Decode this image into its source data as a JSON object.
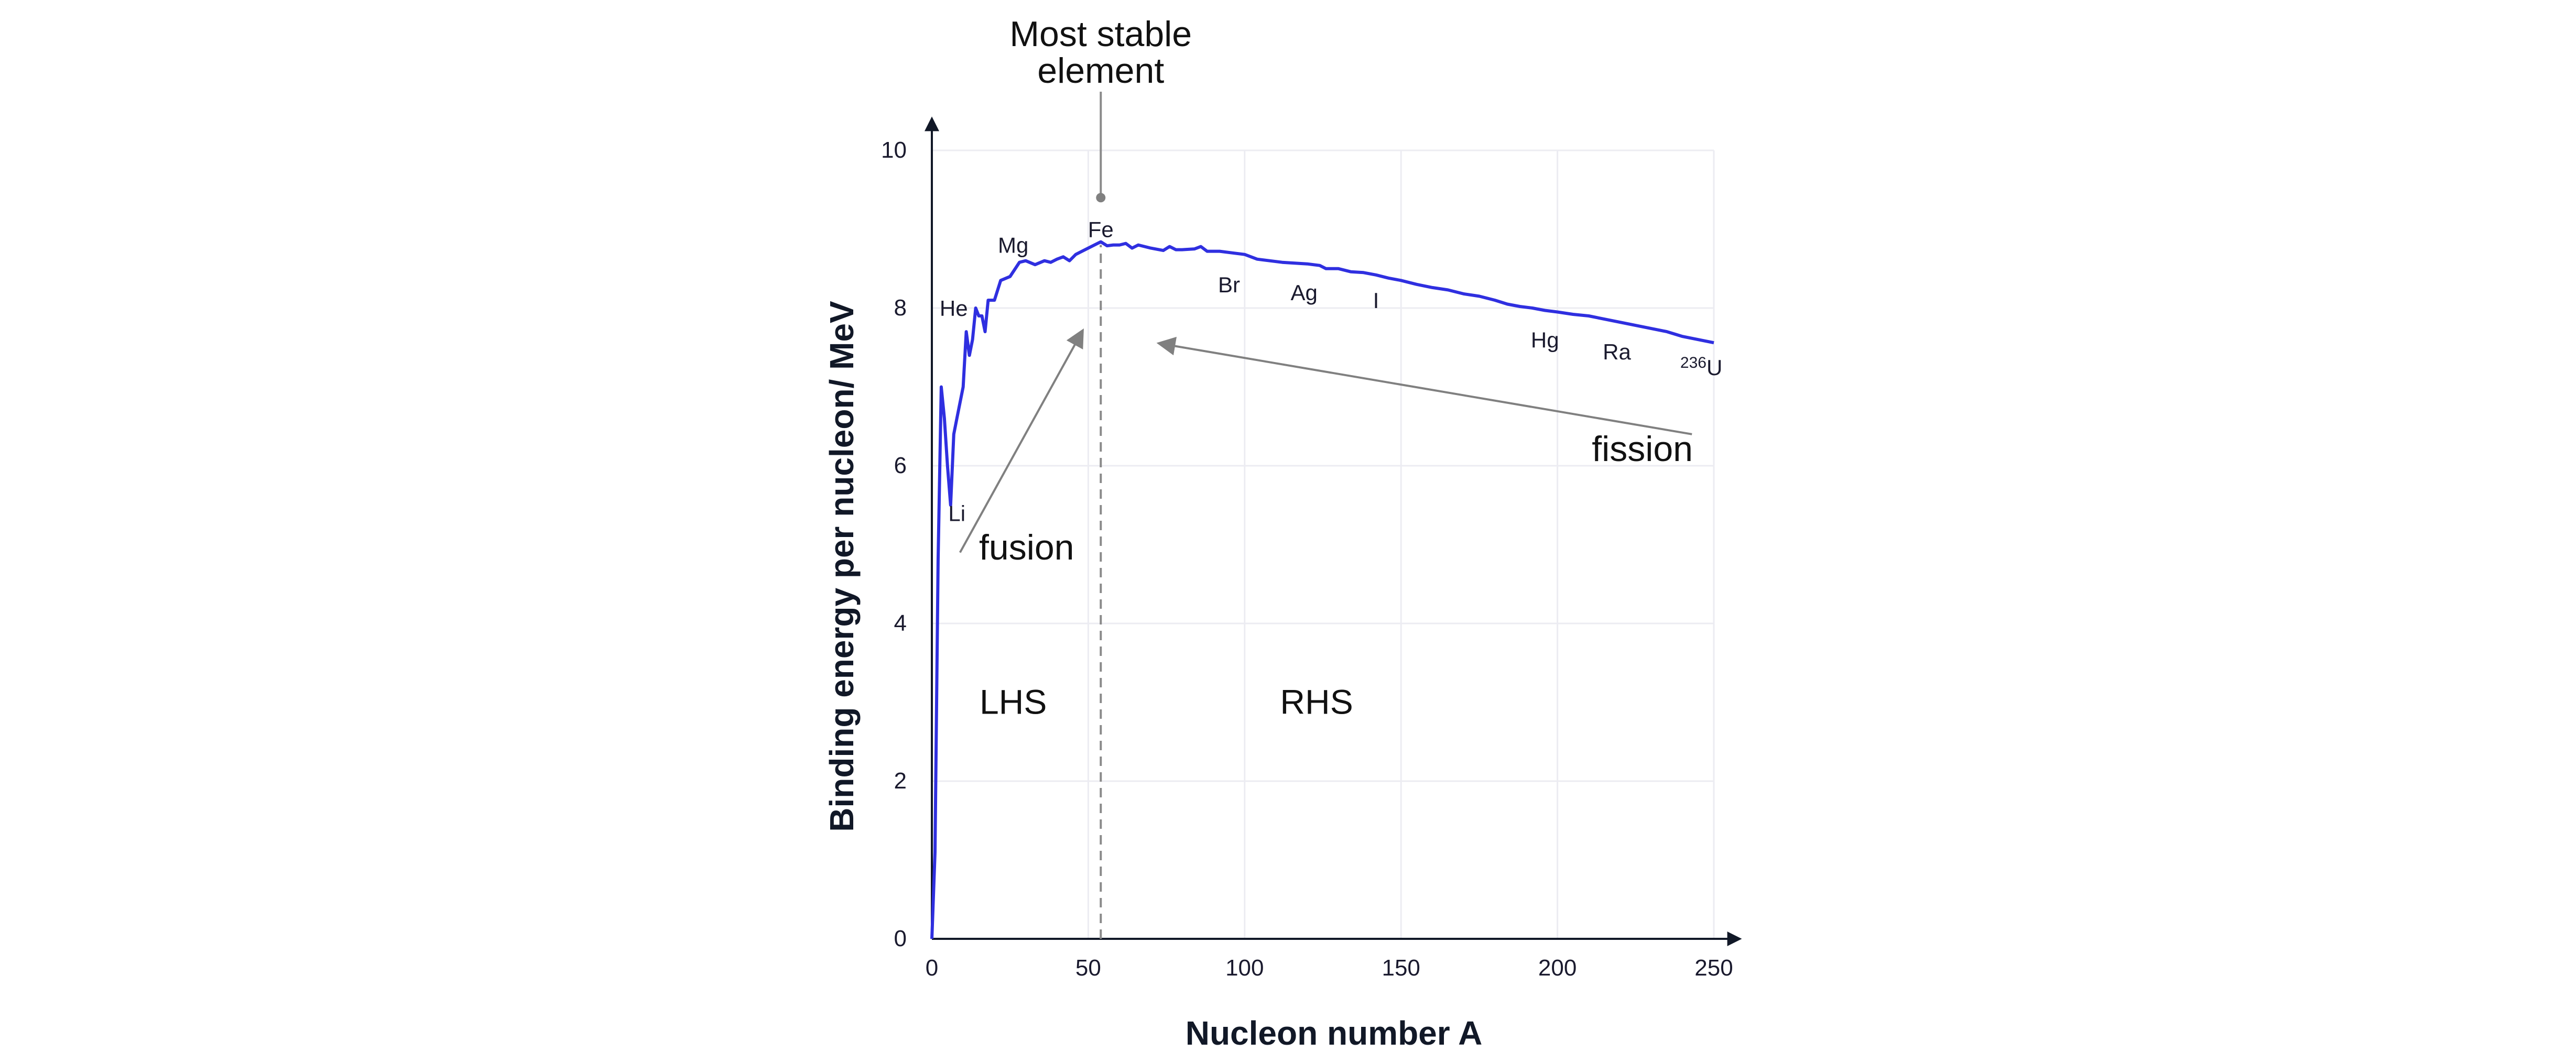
{
  "chart_data": {
    "type": "line",
    "title": "",
    "xlabel": "Nucleon number A",
    "ylabel": "Binding energy per nucleon/ MeV",
    "xlim": [
      0,
      250
    ],
    "ylim": [
      0,
      10
    ],
    "x_ticks": [
      0,
      50,
      100,
      150,
      200,
      250
    ],
    "y_ticks": [
      0,
      2,
      4,
      6,
      8,
      10
    ],
    "grid": true,
    "line_color": "#2f2fe0",
    "series": [
      {
        "name": "",
        "points": [
          [
            0,
            0
          ],
          [
            1,
            1.1
          ],
          [
            2,
            4.8
          ],
          [
            3,
            7.0
          ],
          [
            4,
            6.6
          ],
          [
            5,
            6.0
          ],
          [
            6,
            5.5
          ],
          [
            7,
            6.4
          ],
          [
            8,
            6.6
          ],
          [
            9,
            6.8
          ],
          [
            10,
            7.0
          ],
          [
            11,
            7.7
          ],
          [
            12,
            7.4
          ],
          [
            13,
            7.6
          ],
          [
            14,
            8.0
          ],
          [
            15,
            7.9
          ],
          [
            16,
            7.9
          ],
          [
            17,
            7.7
          ],
          [
            18,
            8.1
          ],
          [
            20,
            8.1
          ],
          [
            22,
            8.35
          ],
          [
            25,
            8.4
          ],
          [
            28,
            8.58
          ],
          [
            30,
            8.6
          ],
          [
            33,
            8.55
          ],
          [
            36,
            8.6
          ],
          [
            38,
            8.58
          ],
          [
            40,
            8.62
          ],
          [
            42,
            8.65
          ],
          [
            44,
            8.6
          ],
          [
            46,
            8.68
          ],
          [
            48,
            8.72
          ],
          [
            50,
            8.76
          ],
          [
            52,
            8.8
          ],
          [
            54,
            8.84
          ],
          [
            56,
            8.79
          ],
          [
            58,
            8.8
          ],
          [
            60,
            8.8
          ],
          [
            62,
            8.82
          ],
          [
            64,
            8.76
          ],
          [
            66,
            8.8
          ],
          [
            70,
            8.76
          ],
          [
            74,
            8.73
          ],
          [
            76,
            8.78
          ],
          [
            78,
            8.74
          ],
          [
            80,
            8.74
          ],
          [
            84,
            8.75
          ],
          [
            86,
            8.78
          ],
          [
            88,
            8.72
          ],
          [
            92,
            8.72
          ],
          [
            96,
            8.7
          ],
          [
            100,
            8.68
          ],
          [
            104,
            8.62
          ],
          [
            108,
            8.6
          ],
          [
            112,
            8.58
          ],
          [
            116,
            8.57
          ],
          [
            120,
            8.56
          ],
          [
            124,
            8.54
          ],
          [
            126,
            8.5
          ],
          [
            130,
            8.5
          ],
          [
            134,
            8.46
          ],
          [
            138,
            8.45
          ],
          [
            142,
            8.42
          ],
          [
            146,
            8.38
          ],
          [
            150,
            8.35
          ],
          [
            155,
            8.3
          ],
          [
            160,
            8.26
          ],
          [
            165,
            8.23
          ],
          [
            170,
            8.18
          ],
          [
            175,
            8.15
          ],
          [
            180,
            8.1
          ],
          [
            184,
            8.05
          ],
          [
            188,
            8.02
          ],
          [
            192,
            8.0
          ],
          [
            196,
            7.97
          ],
          [
            200,
            7.95
          ],
          [
            205,
            7.92
          ],
          [
            210,
            7.9
          ],
          [
            215,
            7.86
          ],
          [
            220,
            7.82
          ],
          [
            225,
            7.78
          ],
          [
            230,
            7.74
          ],
          [
            235,
            7.7
          ],
          [
            240,
            7.64
          ],
          [
            245,
            7.6
          ],
          [
            250,
            7.56
          ]
        ]
      }
    ],
    "element_labels": [
      {
        "text": "He",
        "x": 7,
        "y": 7.9
      },
      {
        "text": "Li",
        "x": 8,
        "y": 5.3
      },
      {
        "text": "Mg",
        "x": 26,
        "y": 8.7
      },
      {
        "text": "Fe",
        "x": 54,
        "y": 8.9
      },
      {
        "text": "Br",
        "x": 95,
        "y": 8.2
      },
      {
        "text": "Ag",
        "x": 119,
        "y": 8.1
      },
      {
        "text": "I",
        "x": 142,
        "y": 8.0
      },
      {
        "text": "Hg",
        "x": 196,
        "y": 7.5
      },
      {
        "text": "Ra",
        "x": 219,
        "y": 7.35
      }
    ],
    "uranium_label": {
      "sup": "236",
      "text": "U",
      "x": 246,
      "y": 7.15
    },
    "most_stable": {
      "text_line1": "Most stable",
      "text_line2": "element",
      "x": 54,
      "point_y": 9.4
    },
    "stability_line_x": 54,
    "fusion": {
      "text": "fusion",
      "arrow_from": [
        9,
        4.9
      ],
      "arrow_to": [
        48,
        7.7
      ]
    },
    "fission": {
      "text": "fission",
      "arrow_from": [
        243,
        6.4
      ],
      "arrow_to": [
        73,
        7.55
      ]
    },
    "regions": [
      {
        "text": "LHS",
        "x": 26,
        "y": 3.0
      },
      {
        "text": "RHS",
        "x": 123,
        "y": 3.0
      }
    ]
  }
}
